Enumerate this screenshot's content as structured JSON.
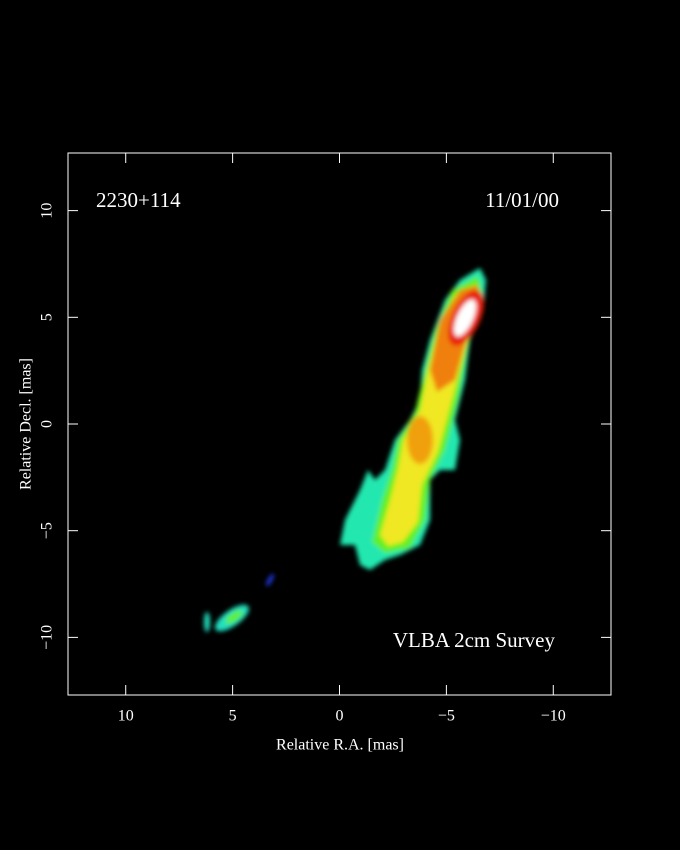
{
  "chart_data": {
    "type": "image",
    "source": "2230+114",
    "date": "11/01/00",
    "survey": "VLBA 2cm Survey",
    "x_label": "Relative R.A. [mas]",
    "y_label": "Relative Decl. [mas]",
    "xlim": [
      12.7,
      -12.7
    ],
    "ylim": [
      -12.7,
      12.7
    ],
    "xticks": [
      10,
      5,
      0,
      {
        "value": -5,
        "label": "−5"
      },
      {
        "value": -10,
        "label": "−10"
      }
    ],
    "yticks": [
      {
        "value": -10,
        "label": "−10"
      },
      {
        "value": -5,
        "label": "−5"
      },
      0,
      5,
      10
    ]
  }
}
